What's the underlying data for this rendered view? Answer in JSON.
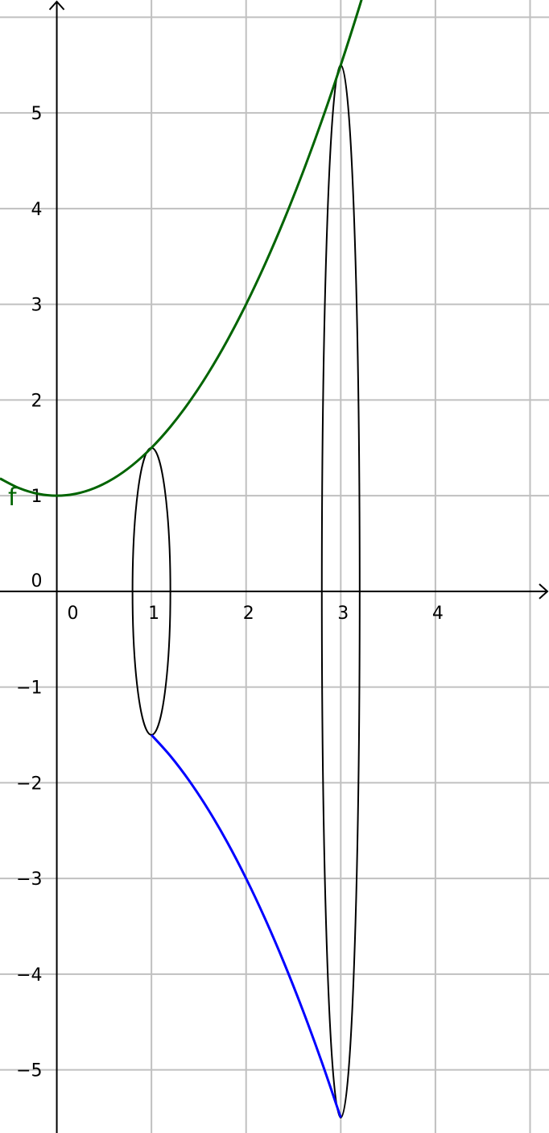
{
  "chart_data": {
    "type": "line",
    "title": "",
    "xlabel": "",
    "ylabel": "",
    "xlim": [
      -0.6,
      5.2
    ],
    "ylim": [
      -5.66,
      6.18
    ],
    "grid": true,
    "x_ticks": [
      0,
      1,
      2,
      3,
      4
    ],
    "x_tick_labels": [
      "0",
      "1",
      "2",
      "3",
      "4"
    ],
    "y_ticks": [
      -5,
      -4,
      -3,
      -2,
      -1,
      1,
      2,
      3,
      4,
      5
    ],
    "y_tick_labels": [
      "−5",
      "−4",
      "−3",
      "−2",
      "−1",
      "1",
      "2",
      "3",
      "4",
      "5"
    ],
    "origin_label": "0",
    "series": [
      {
        "name": "f",
        "color": "#006400",
        "x": [
          -0.6,
          -0.4,
          -0.2,
          0,
          0.2,
          0.4,
          0.6,
          0.8,
          1,
          1.2,
          1.4,
          1.6,
          1.8,
          2,
          2.2,
          2.4,
          2.6,
          2.8,
          3,
          3.2,
          3.4
        ],
        "y": [
          1.18,
          1.08,
          1.02,
          1.0,
          1.02,
          1.08,
          1.18,
          1.32,
          1.5,
          1.72,
          1.98,
          2.28,
          2.62,
          3.0,
          3.42,
          3.88,
          4.38,
          4.92,
          5.5,
          6.12,
          6.78
        ]
      },
      {
        "color": "#0000ff",
        "x": [
          1,
          1.2,
          1.4,
          1.6,
          1.8,
          2,
          2.2,
          2.4,
          2.6,
          2.8,
          3
        ],
        "y": [
          -1.5,
          -1.72,
          -1.98,
          -2.28,
          -2.62,
          -3.0,
          -3.42,
          -3.88,
          -4.38,
          -4.92,
          -5.5
        ]
      }
    ],
    "ellipses": [
      {
        "cx": 1,
        "cy": 0,
        "rx": 0.2,
        "ry": 1.5,
        "color": "#000000"
      },
      {
        "cx": 3,
        "cy": 0,
        "rx": 0.2,
        "ry": 5.5,
        "color": "#000000"
      }
    ],
    "colors": {
      "grid": "#c0c0c0",
      "axis": "#000000"
    }
  }
}
